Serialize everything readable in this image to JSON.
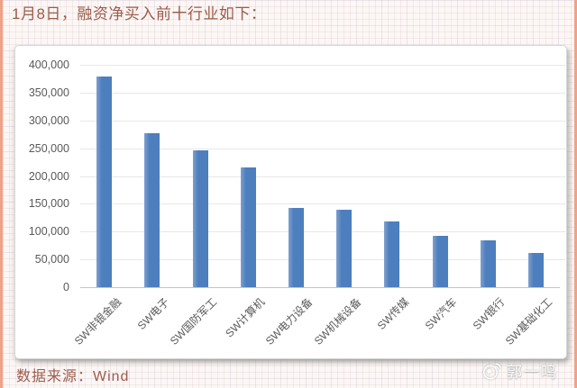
{
  "title": "1月8日，融资净买入前十行业如下：",
  "footer": {
    "source_label": "数据来源：Wind"
  },
  "watermark": {
    "icon": "weibo-icon",
    "text": "郭一鸣"
  },
  "colors": {
    "bar": "#4d7ebd",
    "title_text": "#9c5c4d",
    "gridline": "#e8e8e8",
    "axis_text": "#595959",
    "page_accent_border": "#efa287",
    "panel_background": "#ffffff"
  },
  "chart_data": {
    "type": "bar",
    "categories": [
      "SW非银金融",
      "SW电子",
      "SW国防军工",
      "SW计算机",
      "SW电力设备",
      "SW机械设备",
      "SW传媒",
      "SW汽车",
      "SW银行",
      "SW基础化工"
    ],
    "values": [
      379000,
      277000,
      246000,
      215000,
      142000,
      140000,
      119000,
      92000,
      85000,
      62000
    ],
    "title": "",
    "xlabel": "",
    "ylabel": "",
    "ylim": [
      0,
      400000
    ],
    "ytick_interval": 50000,
    "ytick_labels": [
      "0",
      "50,000",
      "100,000",
      "150,000",
      "200,000",
      "250,000",
      "300,000",
      "350,000",
      "400,000"
    ],
    "grid": true,
    "legend": false
  }
}
